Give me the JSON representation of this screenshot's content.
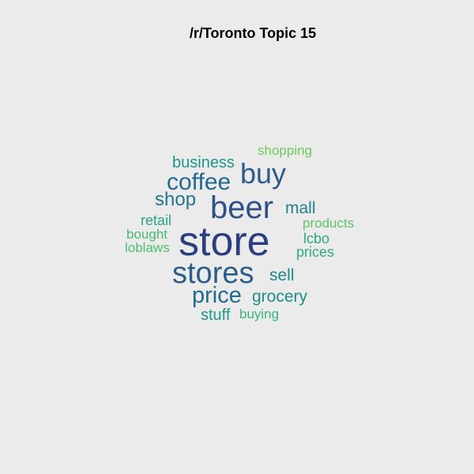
{
  "title": "/r/Toronto Topic 15",
  "words": [
    {
      "text": "store",
      "color": "#2c3e7f"
    },
    {
      "text": "beer",
      "color": "#2e5087"
    },
    {
      "text": "stores",
      "color": "#2b5d8a"
    },
    {
      "text": "buy",
      "color": "#2d5c8c"
    },
    {
      "text": "coffee",
      "color": "#26688e"
    },
    {
      "text": "price",
      "color": "#24698e"
    },
    {
      "text": "shop",
      "color": "#22758e"
    },
    {
      "text": "mall",
      "color": "#1f838c"
    },
    {
      "text": "sell",
      "color": "#1d868b"
    },
    {
      "text": "grocery",
      "color": "#1d8e8b"
    },
    {
      "text": "business",
      "color": "#1e968a"
    },
    {
      "text": "stuff",
      "color": "#1f9888"
    },
    {
      "text": "retail",
      "color": "#27a384"
    },
    {
      "text": "lcbo",
      "color": "#28a883"
    },
    {
      "text": "prices",
      "color": "#2fab7e"
    },
    {
      "text": "buying",
      "color": "#3bb47b"
    },
    {
      "text": "bought",
      "color": "#46ba73"
    },
    {
      "text": "loblaws",
      "color": "#4ebe70"
    },
    {
      "text": "products",
      "color": "#5cc366"
    },
    {
      "text": "shopping",
      "color": "#6dca5b"
    }
  ]
}
